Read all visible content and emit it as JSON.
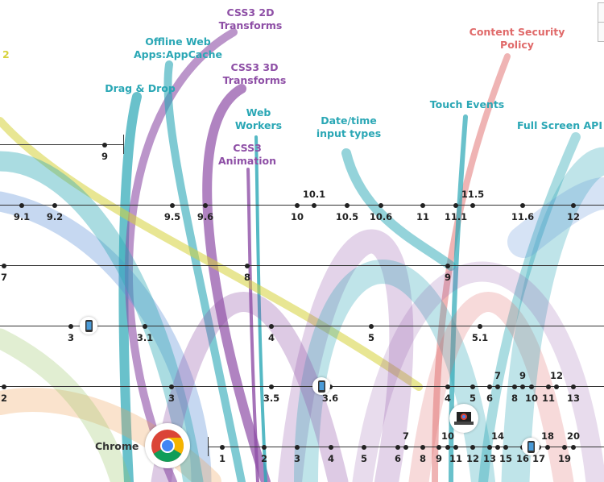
{
  "features": [
    {
      "name": "CSS3 2D\nTransforms",
      "color": "#8e4fa6"
    },
    {
      "name": "Offline Web\nApps:AppCache",
      "color": "#2aa7b5"
    },
    {
      "name": "Drag & Drop",
      "color": "#2aa7b5"
    },
    {
      "name": "CSS3 3D\nTransforms",
      "color": "#8e4fa6"
    },
    {
      "name": "Web\nWorkers",
      "color": "#2aa7b5"
    },
    {
      "name": "CSS3\nAnimation",
      "color": "#8e4fa6"
    },
    {
      "name": "Date/time\ninput types",
      "color": "#2aa7b5"
    },
    {
      "name": "Content Security\nPolicy",
      "color": "#e06a6a"
    },
    {
      "name": "Touch Events",
      "color": "#2aa7b5"
    },
    {
      "name": "Full Screen API",
      "color": "#2aa7b5"
    },
    {
      "name": "2",
      "color": "#d6d23a"
    }
  ],
  "timelines": [
    {
      "versions": [
        "9"
      ]
    },
    {
      "versions": [
        "9.1",
        "9.2",
        "9.5",
        "9.6",
        "10",
        "10.1",
        "10.5",
        "10.6",
        "11",
        "11.1",
        "11.5",
        "11.6",
        "12"
      ]
    },
    {
      "versions": [
        "7",
        "8",
        "9"
      ]
    },
    {
      "versions": [
        "3",
        "3.1",
        "4",
        "5",
        "5.1"
      ],
      "icons": [
        "mobile-icon"
      ]
    },
    {
      "versions": [
        "2",
        "3",
        "3.5",
        "3.6",
        "4",
        "5",
        "6",
        "7",
        "8",
        "9",
        "10",
        "11",
        "12",
        "13"
      ],
      "icons": [
        "mobile-icon"
      ]
    },
    {
      "label": "Chrome",
      "versions": [
        "1",
        "2",
        "3",
        "4",
        "5",
        "6",
        "7",
        "8",
        "9",
        "10",
        "11",
        "12",
        "13",
        "14",
        "15",
        "16",
        "17",
        "18",
        "19",
        "20"
      ],
      "icons": [
        "chrome-logo",
        "laptop-icon",
        "mobile-icon"
      ]
    }
  ],
  "ribbon_colors": [
    "#2aa7b5",
    "#8e4fa6",
    "#e06a6a",
    "#d6d23a",
    "#f0a35a",
    "#5b8fd6",
    "#9bc86a"
  ]
}
